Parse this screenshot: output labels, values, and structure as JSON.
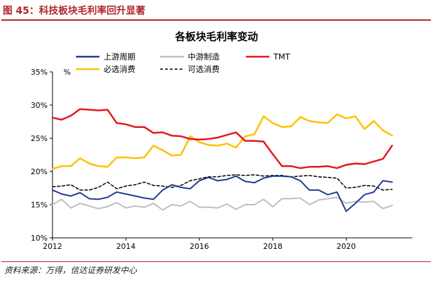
{
  "figure": {
    "title": "图 45：科技板块毛利率回升显著",
    "source": "资料来源：万得，信达证券研发中心"
  },
  "colors": {
    "figure_accent": "#b0262b"
  },
  "chart_data": {
    "type": "line",
    "title": "各板块毛利率变动",
    "ylabel": "%",
    "xlabel": "",
    "xlim": [
      2012.0,
      2021.8
    ],
    "ylim": [
      10,
      35
    ],
    "y_ticks": [
      10,
      15,
      20,
      25,
      30,
      35
    ],
    "y_tick_labels": [
      "10%",
      "15%",
      "20%",
      "25%",
      "30%",
      "35%"
    ],
    "x_ticks": [
      2012,
      2014,
      2016,
      2018,
      2020
    ],
    "x_tick_labels": [
      "2012",
      "2014",
      "2016",
      "2018",
      "2020"
    ],
    "grid": false,
    "legend_position": "top-left, 2 columns",
    "x": [
      2012.0,
      2012.25,
      2012.5,
      2012.75,
      2013.0,
      2013.25,
      2013.5,
      2013.75,
      2014.0,
      2014.25,
      2014.5,
      2014.75,
      2015.0,
      2015.25,
      2015.5,
      2015.75,
      2016.0,
      2016.25,
      2016.5,
      2016.75,
      2017.0,
      2017.25,
      2017.5,
      2017.75,
      2018.0,
      2018.25,
      2018.5,
      2018.75,
      2019.0,
      2019.25,
      2019.5,
      2019.75,
      2020.0,
      2020.25,
      2020.5,
      2020.75,
      2021.0,
      2021.25
    ],
    "series": [
      {
        "name": "上游周期",
        "color": "#1f3a93",
        "dash": "solid",
        "width": 2,
        "values": [
          17.2,
          16.6,
          16.3,
          16.8,
          15.9,
          15.8,
          16.1,
          16.9,
          16.6,
          16.3,
          16.0,
          15.8,
          17.2,
          18.0,
          17.6,
          17.4,
          18.6,
          19.1,
          18.6,
          18.8,
          19.3,
          18.5,
          18.3,
          19.0,
          19.3,
          19.3,
          19.2,
          18.6,
          17.2,
          17.2,
          16.5,
          16.9,
          14.0,
          15.2,
          16.5,
          16.9,
          18.6,
          18.4
        ]
      },
      {
        "name": "中游制造",
        "color": "#bfbfbf",
        "dash": "solid",
        "width": 2,
        "values": [
          15.0,
          15.8,
          14.5,
          15.2,
          14.8,
          14.4,
          14.7,
          15.3,
          14.5,
          14.8,
          14.6,
          15.2,
          14.2,
          15.0,
          14.8,
          15.5,
          14.6,
          14.6,
          14.5,
          15.1,
          14.3,
          15.0,
          15.0,
          15.8,
          14.7,
          15.9,
          15.9,
          16.0,
          15.0,
          15.7,
          15.9,
          16.1,
          15.2,
          15.5,
          15.4,
          15.5,
          14.4,
          14.9
        ]
      },
      {
        "name": "TMT",
        "color": "#e4161b",
        "dash": "solid",
        "width": 2.5,
        "values": [
          28.1,
          27.8,
          28.4,
          29.4,
          29.3,
          29.2,
          29.3,
          27.3,
          27.1,
          26.7,
          26.7,
          25.8,
          25.9,
          25.4,
          25.3,
          24.9,
          24.8,
          24.9,
          25.1,
          25.5,
          25.9,
          24.6,
          24.6,
          24.5,
          22.6,
          20.8,
          20.8,
          20.5,
          20.7,
          20.7,
          20.8,
          20.5,
          21.0,
          21.2,
          21.1,
          21.5,
          21.9,
          23.9
        ]
      },
      {
        "name": "必选消费",
        "color": "#ffc000",
        "dash": "solid",
        "width": 2.5,
        "values": [
          20.4,
          20.8,
          20.8,
          22.0,
          21.2,
          20.8,
          20.7,
          22.1,
          22.1,
          22.0,
          22.1,
          23.9,
          23.2,
          22.4,
          22.5,
          25.3,
          24.4,
          24.0,
          23.9,
          24.2,
          23.6,
          25.3,
          25.6,
          28.3,
          27.3,
          26.7,
          26.8,
          28.2,
          27.6,
          27.4,
          27.3,
          28.6,
          28.0,
          28.3,
          26.4,
          27.6,
          26.2,
          25.4
        ]
      },
      {
        "name": "可选消费",
        "color": "#000000",
        "dash": "dashed",
        "width": 1.5,
        "values": [
          17.7,
          17.8,
          18.0,
          17.2,
          17.2,
          17.6,
          18.4,
          17.4,
          17.8,
          18.0,
          18.4,
          17.9,
          17.8,
          17.6,
          17.9,
          18.6,
          18.9,
          19.2,
          19.2,
          19.4,
          19.5,
          19.4,
          19.5,
          19.3,
          19.4,
          19.4,
          19.2,
          19.3,
          19.4,
          19.2,
          19.1,
          19.0,
          17.5,
          17.6,
          17.9,
          17.8,
          17.2,
          17.3
        ]
      }
    ]
  }
}
